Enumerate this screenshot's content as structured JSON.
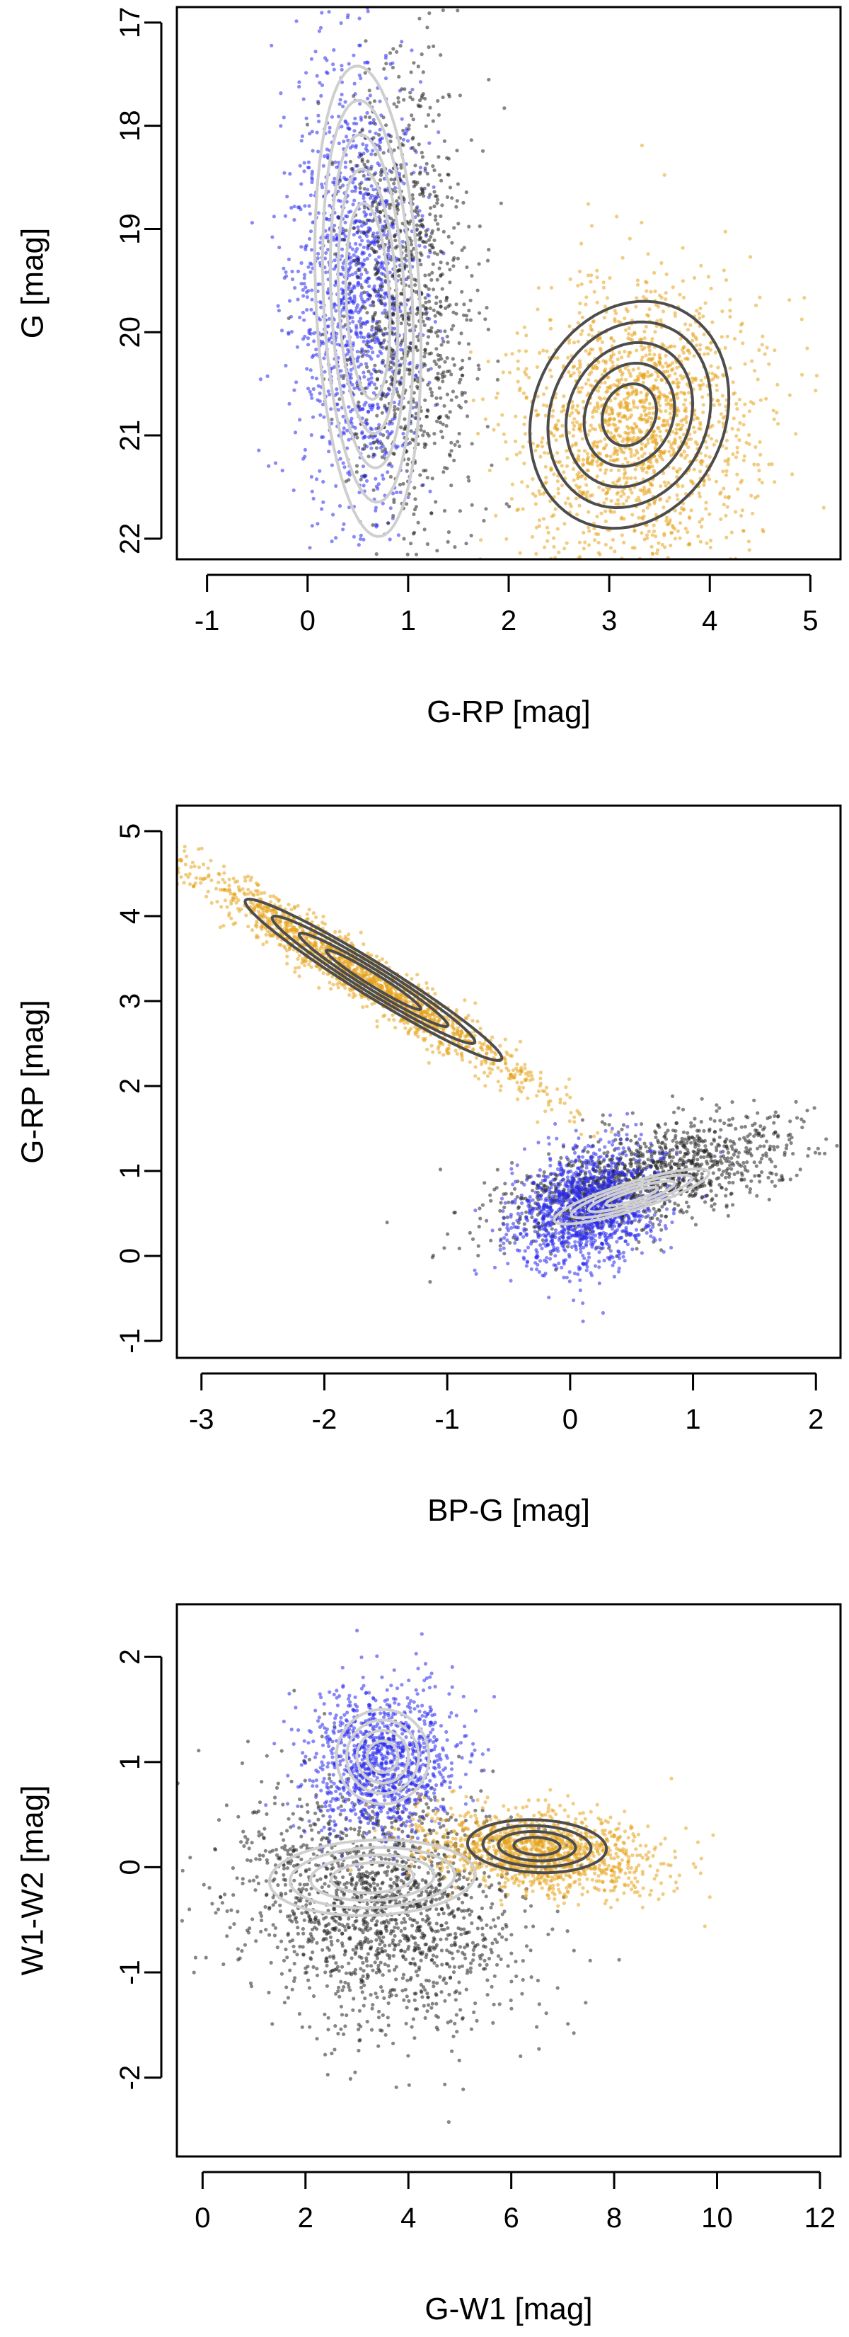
{
  "colors": {
    "class_blue": "#2a2af0",
    "class_orange": "#e6a21a",
    "class_black": "#222222",
    "contour_light": "#cfcfcf",
    "contour_dark": "#4d4d4d"
  },
  "chart_data": [
    {
      "type": "scatter",
      "title": "",
      "xlabel": "G-RP [mag]",
      "ylabel": "G [mag]",
      "xlim": [
        -1.3,
        5.3
      ],
      "ylim": [
        22.2,
        16.85
      ],
      "y_reversed": true,
      "xticks": [
        -1,
        0,
        1,
        2,
        3,
        4,
        5
      ],
      "yticks": [
        17,
        18,
        19,
        20,
        21,
        22
      ],
      "grid": false,
      "legend": "none",
      "series": [
        {
          "color": "#2a2af0",
          "cloud": {
            "cx": 0.5,
            "cy": 19.6,
            "sx": 0.33,
            "sy": 1.1,
            "rho": 0.05,
            "n": 1400
          }
        },
        {
          "color": "#222222",
          "cloud": {
            "cx": 1.0,
            "cy": 19.7,
            "sx": 0.32,
            "sy": 1.15,
            "rho": 0.1,
            "n": 1000
          }
        },
        {
          "color": "#e6a21a",
          "cloud": {
            "cx": 3.3,
            "cy": 20.9,
            "sx": 0.6,
            "sy": 0.7,
            "rho": -0.1,
            "n": 1700
          }
        }
      ],
      "contours": [
        {
          "color": "#cfcfcf",
          "cx": 0.6,
          "cy": 19.7,
          "sx": 0.22,
          "sy": 0.95,
          "rho": 0.2,
          "levels": [
            1.0,
            1.35,
            1.7,
            2.05,
            2.4
          ]
        },
        {
          "color": "#4d4d4d",
          "cx": 3.2,
          "cy": 20.8,
          "sx": 0.45,
          "sy": 0.5,
          "rho": -0.15,
          "levels": [
            0.6,
            1.0,
            1.4,
            1.8,
            2.2
          ]
        }
      ]
    },
    {
      "type": "scatter",
      "title": "",
      "xlabel": "BP-G [mag]",
      "ylabel": "G-RP [mag]",
      "xlim": [
        -3.2,
        2.2
      ],
      "ylim": [
        -1.2,
        5.3
      ],
      "xticks": [
        -3,
        -2,
        -1,
        0,
        1,
        2
      ],
      "yticks": [
        -1,
        0,
        1,
        2,
        3,
        4,
        5
      ],
      "grid": false,
      "legend": "none",
      "series": [
        {
          "color": "#e6a21a",
          "cloud": {
            "cx": -1.7,
            "cy": 3.3,
            "sx": 0.7,
            "sy": 0.65,
            "rho": -0.97,
            "n": 1600
          }
        },
        {
          "color": "#222222",
          "cloud": {
            "cx": 0.6,
            "cy": 0.9,
            "sx": 0.6,
            "sy": 0.35,
            "rho": 0.6,
            "n": 1300
          }
        },
        {
          "color": "#2a2af0",
          "cloud": {
            "cx": 0.15,
            "cy": 0.55,
            "sx": 0.3,
            "sy": 0.35,
            "rho": 0.2,
            "n": 1300
          }
        }
      ],
      "contours": [
        {
          "color": "#4d4d4d",
          "cx": -1.6,
          "cy": 3.25,
          "sx": 0.55,
          "sy": 0.5,
          "rho": -0.97,
          "levels": [
            0.7,
            1.1,
            1.5,
            1.9
          ]
        },
        {
          "color": "#cfcfcf",
          "cx": 0.5,
          "cy": 0.7,
          "sx": 0.35,
          "sy": 0.18,
          "rho": 0.85,
          "levels": [
            0.6,
            1.0,
            1.4,
            1.8
          ]
        }
      ]
    },
    {
      "type": "scatter",
      "title": "",
      "xlabel": "G-W1 [mag]",
      "ylabel": "W1-W2 [mag]",
      "xlim": [
        -0.5,
        12.4
      ],
      "ylim": [
        -2.75,
        2.5
      ],
      "xticks": [
        0,
        2,
        4,
        6,
        8,
        10,
        12
      ],
      "yticks": [
        -2,
        -1,
        0,
        1,
        2
      ],
      "grid": false,
      "legend": "none",
      "series": [
        {
          "color": "#222222",
          "cloud": {
            "cx": 3.4,
            "cy": -0.35,
            "sx": 1.4,
            "sy": 0.6,
            "rho": -0.2,
            "n": 1700
          }
        },
        {
          "color": "#2a2af0",
          "cloud": {
            "cx": 3.5,
            "cy": 1.0,
            "sx": 0.7,
            "sy": 0.35,
            "rho": 0.0,
            "n": 1100
          }
        },
        {
          "color": "#e6a21a",
          "cloud": {
            "cx": 6.5,
            "cy": 0.15,
            "sx": 1.1,
            "sy": 0.2,
            "rho": -0.3,
            "n": 1300
          }
        }
      ],
      "contours": [
        {
          "color": "#cfcfcf",
          "cx": 3.3,
          "cy": -0.1,
          "sx": 1.0,
          "sy": 0.18,
          "rho": 0.1,
          "levels": [
            0.8,
            1.2,
            1.6,
            2.0
          ]
        },
        {
          "color": "#cfcfcf",
          "cx": 3.5,
          "cy": 1.05,
          "sx": 0.5,
          "sy": 0.25,
          "rho": 0.0,
          "levels": [
            0.6,
            1.0,
            1.4,
            1.8
          ]
        },
        {
          "color": "#4d4d4d",
          "cx": 6.5,
          "cy": 0.2,
          "sx": 0.75,
          "sy": 0.14,
          "rho": -0.1,
          "levels": [
            0.6,
            1.0,
            1.4,
            1.8
          ]
        }
      ]
    }
  ]
}
